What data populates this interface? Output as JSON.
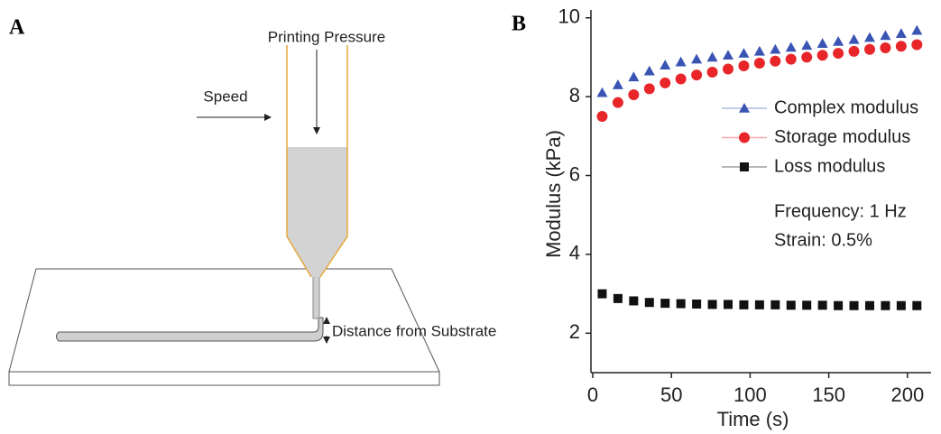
{
  "panel_labels": [
    "A",
    "B"
  ],
  "diagram": {
    "pressure_label": "Printing Pressure",
    "speed_label": "Speed",
    "distance_label": "Distance from Substrate"
  },
  "chart_data": {
    "type": "scatter",
    "x_label": "Time (s)",
    "y_label": "Modulus (kPa)",
    "x": [
      6,
      16,
      26,
      36,
      46,
      56,
      66,
      76,
      86,
      96,
      106,
      116,
      126,
      136,
      146,
      156,
      166,
      176,
      186,
      196,
      206
    ],
    "series": [
      {
        "name": "Complex modulus",
        "color": "#3a54b4",
        "marker": "triangle",
        "values": [
          8.1,
          8.3,
          8.5,
          8.65,
          8.8,
          8.88,
          8.95,
          9.0,
          9.05,
          9.1,
          9.15,
          9.2,
          9.25,
          9.3,
          9.35,
          9.4,
          9.45,
          9.5,
          9.55,
          9.6,
          9.68
        ]
      },
      {
        "name": "Storage modulus",
        "color": "#e8262a",
        "marker": "circle",
        "values": [
          7.5,
          7.85,
          8.05,
          8.2,
          8.35,
          8.45,
          8.55,
          8.62,
          8.7,
          8.78,
          8.85,
          8.9,
          8.95,
          9.0,
          9.05,
          9.1,
          9.15,
          9.2,
          9.24,
          9.28,
          9.32
        ]
      },
      {
        "name": "Loss modulus",
        "color": "#111111",
        "marker": "square",
        "values": [
          3.0,
          2.88,
          2.82,
          2.78,
          2.76,
          2.75,
          2.74,
          2.73,
          2.73,
          2.72,
          2.72,
          2.72,
          2.71,
          2.71,
          2.71,
          2.7,
          2.7,
          2.7,
          2.7,
          2.7,
          2.7
        ]
      }
    ],
    "annotations": [
      "Frequency: 1 Hz",
      "Strain: 0.5%"
    ],
    "xlim": [
      0,
      215
    ],
    "ylim": [
      1,
      10.2
    ],
    "xticks": [
      0,
      50,
      100,
      150,
      200
    ],
    "yticks": [
      2,
      4,
      6,
      8,
      10
    ],
    "grid": false
  }
}
